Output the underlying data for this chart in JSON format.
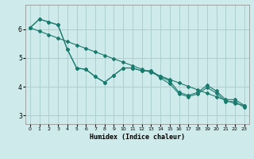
{
  "xlabel": "Humidex (Indice chaleur)",
  "background_color": "#ceeaea",
  "grid_color": "#aecfcf",
  "line_color": "#1a7a6e",
  "xlim": [
    -0.5,
    23.5
  ],
  "ylim": [
    2.7,
    6.85
  ],
  "yticks": [
    3,
    4,
    5,
    6
  ],
  "xticks": [
    0,
    1,
    2,
    3,
    4,
    5,
    6,
    7,
    8,
    9,
    10,
    11,
    12,
    13,
    14,
    15,
    16,
    17,
    18,
    19,
    20,
    21,
    22,
    23
  ],
  "series": [
    {
      "x": [
        0,
        1,
        2,
        3,
        4,
        5,
        6,
        7,
        8,
        9,
        10,
        11,
        12,
        13,
        14,
        15,
        16,
        17,
        18,
        19,
        20,
        21,
        22,
        23
      ],
      "y": [
        6.05,
        6.35,
        6.25,
        6.15,
        5.3,
        4.65,
        4.6,
        4.35,
        4.15,
        4.4,
        4.65,
        4.65,
        4.55,
        4.55,
        4.35,
        4.2,
        3.8,
        3.7,
        3.8,
        4.05,
        3.85,
        3.55,
        3.55,
        3.35
      ]
    },
    {
      "x": [
        0,
        1,
        2,
        3,
        4,
        5,
        6,
        7,
        8,
        9,
        10,
        11,
        12,
        13,
        14,
        15,
        16,
        17,
        18,
        19,
        20,
        21,
        22,
        23
      ],
      "y": [
        6.05,
        6.35,
        6.25,
        6.15,
        5.3,
        4.65,
        4.6,
        4.35,
        4.15,
        4.4,
        4.65,
        4.65,
        4.55,
        4.55,
        4.3,
        4.1,
        3.75,
        3.65,
        3.75,
        3.97,
        3.78,
        3.48,
        3.48,
        3.28
      ]
    },
    {
      "x": [
        0,
        1,
        2,
        3,
        4,
        5,
        6,
        7,
        8,
        9,
        10,
        11,
        12,
        13,
        14,
        15,
        16,
        17,
        18,
        19,
        20,
        21,
        22,
        23
      ],
      "y": [
        6.05,
        5.93,
        5.81,
        5.69,
        5.57,
        5.45,
        5.33,
        5.21,
        5.09,
        4.97,
        4.85,
        4.73,
        4.61,
        4.49,
        4.37,
        4.25,
        4.13,
        4.01,
        3.89,
        3.77,
        3.65,
        3.53,
        3.41,
        3.35
      ]
    }
  ]
}
